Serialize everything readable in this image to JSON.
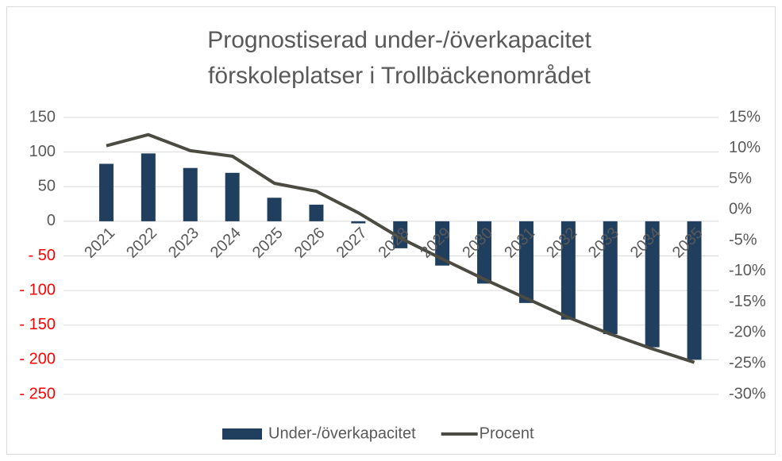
{
  "chart_data": {
    "type": "bar-line",
    "title": [
      "Prognostiserad under-/överkapacitet",
      "förskoleplatser i Trollbäckenområdet"
    ],
    "categories": [
      "2021",
      "2022",
      "2023",
      "2024",
      "2025",
      "2026",
      "2027",
      "2028",
      "2029",
      "2030",
      "2031",
      "2032",
      "2033",
      "2034",
      "2035"
    ],
    "series": [
      {
        "name": "Under-/överkapacitet",
        "type": "bar",
        "axis": "y",
        "color": "#203f5e",
        "values": [
          83,
          98,
          77,
          70,
          34,
          24,
          -3,
          -39,
          -64,
          -90,
          -118,
          -142,
          -163,
          -182,
          -200
        ]
      },
      {
        "name": "Procent",
        "type": "line",
        "axis": "y2",
        "color": "#4b4b42",
        "values": [
          10.4,
          12.2,
          9.6,
          8.7,
          4.3,
          3.0,
          -0.5,
          -4.6,
          -8.0,
          -11.3,
          -14.4,
          -17.5,
          -20.2,
          -22.6,
          -24.8
        ]
      }
    ],
    "ylim": [
      -250,
      150
    ],
    "yticks": [
      150,
      100,
      50,
      0,
      {
        "value": -50,
        "label": "- 50"
      },
      {
        "value": -100,
        "label": "- 100"
      },
      {
        "value": -150,
        "label": "- 150"
      },
      {
        "value": -200,
        "label": "- 200"
      },
      {
        "value": -250,
        "label": "- 250"
      }
    ],
    "negative_tick_color": "#ff0000",
    "y2lim": [
      -30,
      15
    ],
    "y2ticks": [
      {
        "value": 15,
        "label": "15%"
      },
      {
        "value": 10,
        "label": "10%"
      },
      {
        "value": 5,
        "label": "5%"
      },
      {
        "value": 0,
        "label": "0%"
      },
      {
        "value": -5,
        "label": "-5%"
      },
      {
        "value": -10,
        "label": "-10%"
      },
      {
        "value": -15,
        "label": "-15%"
      },
      {
        "value": -20,
        "label": "-20%"
      },
      {
        "value": -25,
        "label": "-25%"
      },
      {
        "value": -30,
        "label": "-30%"
      }
    ],
    "grid": true,
    "legend": "bottom"
  }
}
